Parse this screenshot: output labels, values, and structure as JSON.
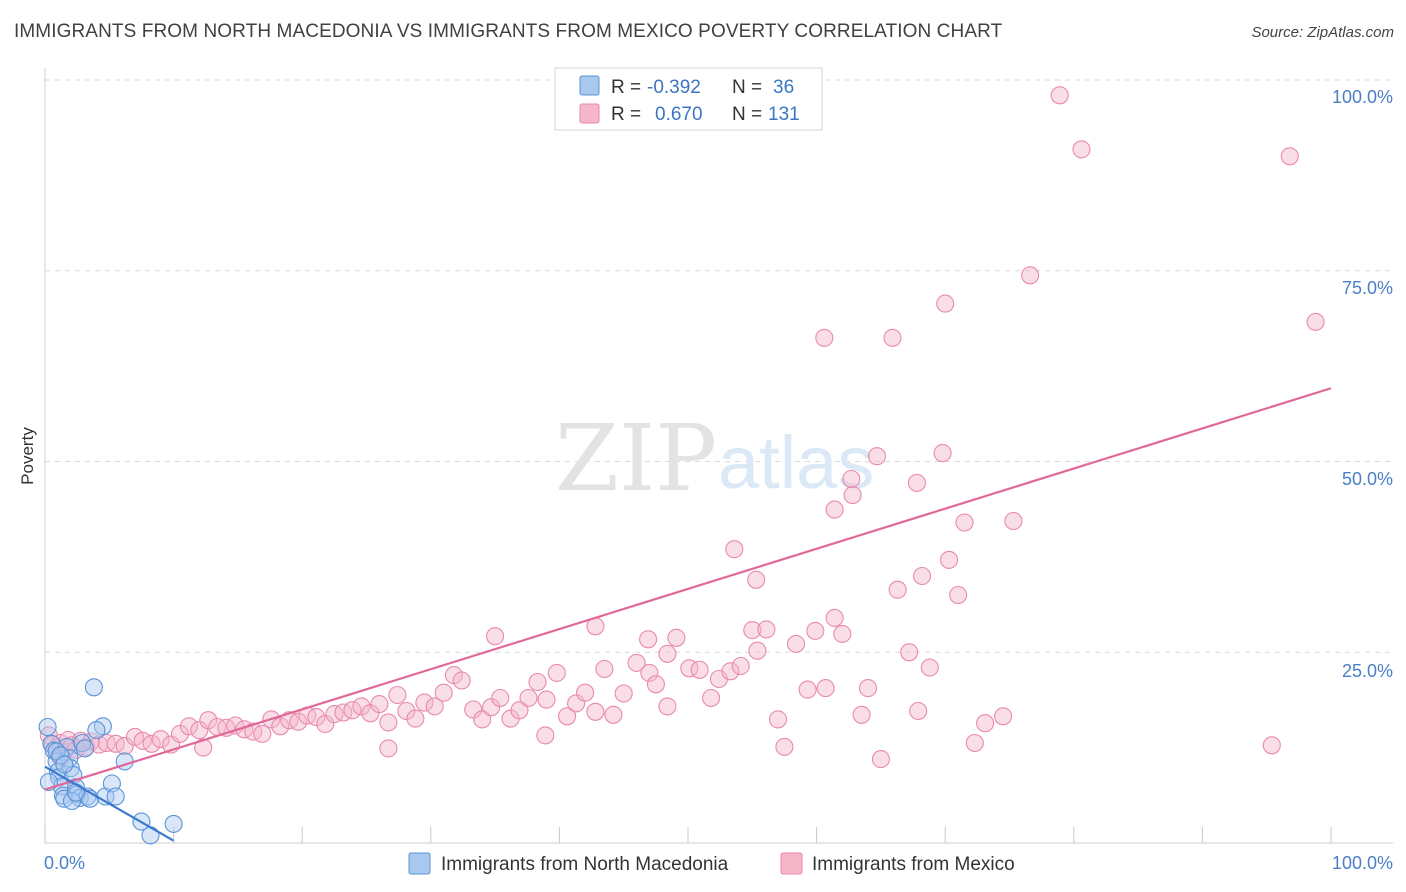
{
  "title": "IMMIGRANTS FROM NORTH MACEDONIA VS IMMIGRANTS FROM MEXICO POVERTY CORRELATION CHART",
  "source": "Source: ZipAtlas.com",
  "watermark": {
    "zip": "ZIP",
    "atlas": "atlas"
  },
  "colors": {
    "blue_fill": "#a9c8ef",
    "blue_stroke": "#5b93d9",
    "blue_line": "#3b79cf",
    "pink_fill": "#f5b6ca",
    "pink_stroke": "#e98aaa",
    "pink_line": "#e0689a",
    "grid": "#d9d9d9",
    "axis_text": "#4a7fc8"
  },
  "legend": {
    "rows": [
      {
        "r_label": "R =",
        "r_value": "-0.392",
        "n_label": "N =",
        "n_value": "36"
      },
      {
        "r_label": "R =",
        "r_value": "0.670",
        "n_label": "N =",
        "n_value": "131"
      }
    ]
  },
  "chart_data": {
    "type": "scatter",
    "title": "IMMIGRANTS FROM NORTH MACEDONIA VS IMMIGRANTS FROM MEXICO POVERTY CORRELATION CHART",
    "xlabel": "",
    "ylabel": "Poverty",
    "xlim": [
      0,
      100
    ],
    "ylim": [
      0,
      100
    ],
    "x_tick_labels": [
      "0.0%",
      "100.0%"
    ],
    "y_ticks": [
      25,
      50,
      75,
      100
    ],
    "y_tick_labels": [
      "25.0%",
      "50.0%",
      "75.0%",
      "100.0%"
    ],
    "series": [
      {
        "name": "Immigrants from North Macedonia",
        "color": "blue",
        "r": -0.392,
        "n": 36,
        "trend": {
          "x0": 0,
          "y0": 10.0,
          "x1": 10,
          "y1": 0.3
        },
        "points": [
          [
            0.2,
            15.2
          ],
          [
            0.5,
            13.0
          ],
          [
            0.7,
            12.1
          ],
          [
            0.9,
            10.7
          ],
          [
            1.0,
            9.3
          ],
          [
            1.1,
            8.6
          ],
          [
            1.3,
            7.4
          ],
          [
            1.4,
            6.2
          ],
          [
            1.5,
            5.8
          ],
          [
            1.7,
            12.6
          ],
          [
            1.9,
            11.1
          ],
          [
            2.0,
            9.8
          ],
          [
            2.2,
            8.9
          ],
          [
            2.4,
            7.3
          ],
          [
            2.5,
            6.4
          ],
          [
            2.7,
            5.9
          ],
          [
            2.9,
            13.1
          ],
          [
            3.1,
            12.4
          ],
          [
            3.3,
            6.1
          ],
          [
            3.5,
            5.8
          ],
          [
            4.5,
            15.3
          ],
          [
            4.7,
            6.1
          ],
          [
            5.2,
            7.8
          ],
          [
            5.5,
            6.1
          ],
          [
            6.2,
            10.7
          ],
          [
            0.9,
            12.0
          ],
          [
            1.2,
            11.5
          ],
          [
            1.5,
            10.3
          ],
          [
            2.1,
            5.5
          ],
          [
            2.4,
            6.6
          ],
          [
            3.8,
            20.4
          ],
          [
            4.0,
            14.8
          ],
          [
            7.5,
            2.8
          ],
          [
            8.2,
            1.0
          ],
          [
            10.0,
            2.5
          ],
          [
            0.3,
            8.0
          ]
        ]
      },
      {
        "name": "Immigrants from Mexico",
        "color": "pink",
        "r": 0.67,
        "n": 131,
        "trend": {
          "x0": 0,
          "y0": 7.0,
          "x1": 100,
          "y1": 59.6
        },
        "points": [
          [
            0.3,
            14.1
          ],
          [
            0.6,
            12.9
          ],
          [
            0.9,
            12.4
          ],
          [
            1.2,
            13.1
          ],
          [
            1.5,
            12.0
          ],
          [
            1.8,
            13.5
          ],
          [
            2.1,
            12.8
          ],
          [
            2.4,
            12.2
          ],
          [
            2.8,
            13.4
          ],
          [
            3.2,
            12.6
          ],
          [
            3.6,
            13.3
          ],
          [
            4.2,
            12.9
          ],
          [
            4.8,
            13.1
          ],
          [
            5.5,
            13.0
          ],
          [
            6.2,
            12.7
          ],
          [
            7.0,
            13.9
          ],
          [
            7.6,
            13.4
          ],
          [
            8.3,
            13.0
          ],
          [
            9.0,
            13.6
          ],
          [
            9.8,
            12.9
          ],
          [
            10.5,
            14.3
          ],
          [
            11.2,
            15.3
          ],
          [
            12.0,
            14.8
          ],
          [
            12.7,
            16.1
          ],
          [
            13.4,
            15.2
          ],
          [
            14.1,
            15.1
          ],
          [
            14.8,
            15.4
          ],
          [
            15.5,
            14.9
          ],
          [
            16.2,
            14.6
          ],
          [
            16.9,
            14.3
          ],
          [
            17.6,
            16.2
          ],
          [
            18.3,
            15.3
          ],
          [
            19.0,
            16.1
          ],
          [
            19.7,
            15.9
          ],
          [
            20.4,
            16.7
          ],
          [
            21.1,
            16.5
          ],
          [
            21.8,
            15.6
          ],
          [
            22.5,
            16.9
          ],
          [
            23.2,
            17.1
          ],
          [
            23.9,
            17.4
          ],
          [
            24.6,
            17.9
          ],
          [
            25.3,
            17.0
          ],
          [
            26.0,
            18.2
          ],
          [
            26.7,
            15.8
          ],
          [
            27.4,
            19.4
          ],
          [
            28.1,
            17.3
          ],
          [
            28.8,
            16.3
          ],
          [
            29.5,
            18.4
          ],
          [
            30.3,
            17.9
          ],
          [
            31.0,
            19.7
          ],
          [
            31.8,
            22.0
          ],
          [
            32.4,
            21.3
          ],
          [
            33.3,
            17.5
          ],
          [
            34.0,
            16.2
          ],
          [
            34.7,
            17.8
          ],
          [
            35.4,
            19.0
          ],
          [
            36.2,
            16.3
          ],
          [
            36.9,
            17.4
          ],
          [
            37.6,
            19.0
          ],
          [
            38.3,
            21.1
          ],
          [
            39.0,
            18.8
          ],
          [
            39.8,
            22.3
          ],
          [
            40.6,
            16.6
          ],
          [
            41.3,
            18.3
          ],
          [
            42.0,
            19.7
          ],
          [
            42.8,
            17.2
          ],
          [
            43.5,
            22.8
          ],
          [
            44.2,
            16.8
          ],
          [
            45.0,
            19.6
          ],
          [
            46.0,
            23.6
          ],
          [
            47.0,
            22.3
          ],
          [
            47.5,
            20.8
          ],
          [
            48.4,
            17.9
          ],
          [
            49.1,
            26.9
          ],
          [
            50.1,
            22.9
          ],
          [
            50.9,
            22.7
          ],
          [
            51.8,
            19.0
          ],
          [
            52.4,
            21.5
          ],
          [
            53.3,
            22.5
          ],
          [
            54.1,
            23.2
          ],
          [
            55.0,
            27.9
          ],
          [
            55.4,
            25.2
          ],
          [
            56.1,
            28.0
          ],
          [
            57.0,
            16.2
          ],
          [
            57.5,
            12.6
          ],
          [
            58.4,
            26.1
          ],
          [
            59.3,
            20.1
          ],
          [
            59.9,
            27.8
          ],
          [
            60.7,
            20.3
          ],
          [
            61.4,
            29.5
          ],
          [
            62.0,
            27.4
          ],
          [
            63.5,
            16.8
          ],
          [
            64.0,
            20.3
          ],
          [
            65.0,
            11.0
          ],
          [
            66.3,
            33.2
          ],
          [
            67.2,
            25.0
          ],
          [
            67.9,
            17.3
          ],
          [
            68.8,
            23.0
          ],
          [
            70.3,
            37.1
          ],
          [
            71.0,
            32.5
          ],
          [
            72.3,
            13.1
          ],
          [
            73.1,
            15.7
          ],
          [
            74.5,
            16.6
          ],
          [
            76.6,
            74.4
          ],
          [
            26.7,
            12.4
          ],
          [
            35.0,
            27.1
          ],
          [
            38.9,
            14.1
          ],
          [
            42.8,
            28.4
          ],
          [
            46.9,
            26.7
          ],
          [
            48.4,
            24.8
          ],
          [
            53.6,
            38.5
          ],
          [
            55.3,
            34.5
          ],
          [
            60.6,
            66.2
          ],
          [
            61.4,
            43.7
          ],
          [
            62.8,
            45.6
          ],
          [
            65.9,
            66.2
          ],
          [
            62.7,
            47.7
          ],
          [
            64.7,
            50.7
          ],
          [
            67.8,
            47.2
          ],
          [
            70.0,
            70.7
          ],
          [
            68.2,
            35.0
          ],
          [
            69.8,
            51.1
          ],
          [
            71.5,
            42.0
          ],
          [
            75.3,
            42.2
          ],
          [
            80.6,
            90.9
          ],
          [
            78.9,
            98.0
          ],
          [
            96.8,
            90.0
          ],
          [
            98.8,
            68.3
          ],
          [
            95.4,
            12.8
          ],
          [
            1.2,
            11.2
          ],
          [
            12.3,
            12.5
          ]
        ]
      }
    ]
  }
}
